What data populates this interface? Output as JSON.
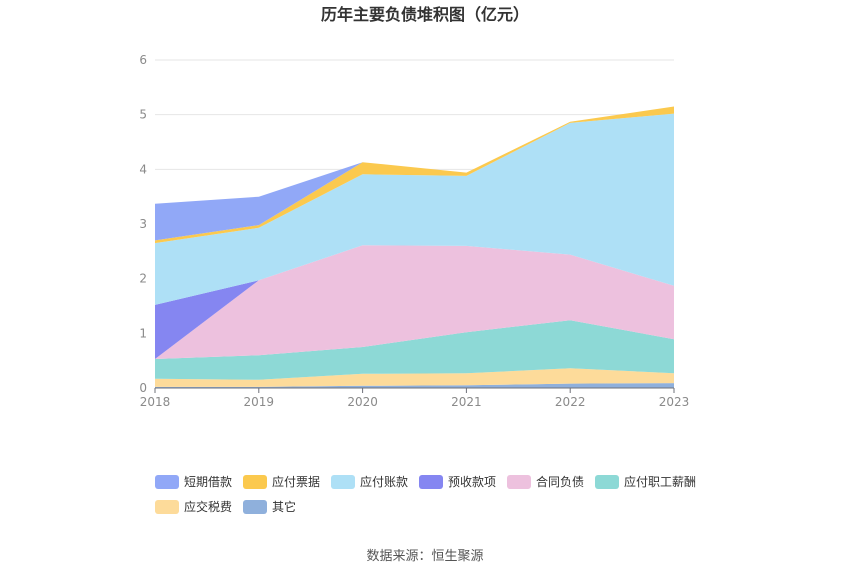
{
  "chart_data": {
    "type": "area",
    "stacked": true,
    "title": "历年主要负债堆积图（亿元）",
    "x": [
      "2018",
      "2019",
      "2020",
      "2021",
      "2022",
      "2023"
    ],
    "ylim": [
      0,
      6
    ],
    "yticks": [
      "0",
      "1",
      "2",
      "3",
      "4",
      "5",
      "6"
    ],
    "grid": true,
    "legend_position": "bottom",
    "series": [
      {
        "name": "其它",
        "color": "#8fb0dc",
        "values": [
          0.02,
          0.02,
          0.04,
          0.05,
          0.08,
          0.09
        ]
      },
      {
        "name": "应交税费",
        "color": "#fddb9a",
        "values": [
          0.15,
          0.13,
          0.22,
          0.22,
          0.28,
          0.18
        ]
      },
      {
        "name": "应付职工薪酬",
        "color": "#8dd9d6",
        "values": [
          0.36,
          0.45,
          0.49,
          0.75,
          0.88,
          0.62
        ]
      },
      {
        "name": "合同负债",
        "color": "#edc1de",
        "values": [
          0.0,
          1.37,
          1.86,
          1.58,
          1.2,
          0.98
        ]
      },
      {
        "name": "预收款项",
        "color": "#8586f1",
        "values": [
          0.99,
          0.0,
          0.0,
          0.0,
          0.0,
          0.0
        ]
      },
      {
        "name": "应付账款",
        "color": "#aee0f6",
        "values": [
          1.13,
          0.96,
          1.3,
          1.28,
          2.41,
          3.15
        ]
      },
      {
        "name": "应付票据",
        "color": "#fbc94e",
        "values": [
          0.05,
          0.05,
          0.22,
          0.06,
          0.02,
          0.13
        ]
      },
      {
        "name": "短期借款",
        "color": "#91a8f7",
        "values": [
          0.67,
          0.52,
          0.0,
          0.0,
          0.0,
          0.0
        ]
      }
    ],
    "legend_order": [
      "短期借款",
      "应付票据",
      "应付账款",
      "预收款项",
      "合同负债",
      "应付职工薪酬",
      "应交税费",
      "其它"
    ]
  },
  "footer": {
    "source_label": "数据来源：恒生聚源"
  }
}
